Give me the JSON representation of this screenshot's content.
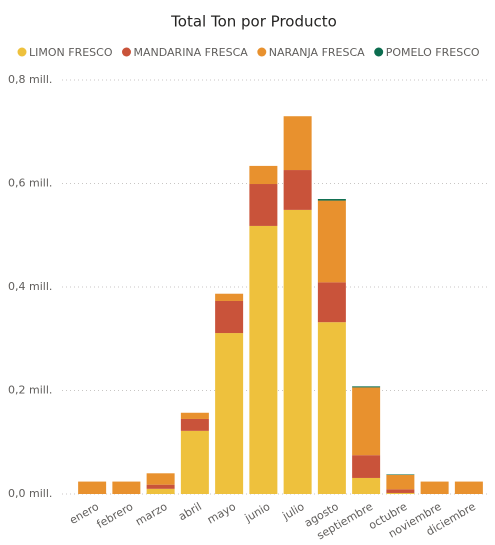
{
  "chart_data": {
    "type": "stacked_bar",
    "title": "Total Ton por Producto",
    "categories": [
      "enero",
      "febrero",
      "marzo",
      "abril",
      "mayo",
      "junio",
      "julio",
      "agosto",
      "septiembre",
      "octubre",
      "noviembre",
      "diciembre"
    ],
    "series": [
      {
        "name": "LIMON FRESCO",
        "color": "#eec13d",
        "values": [
          0,
          0,
          10000,
          122000,
          311000,
          518000,
          549000,
          332000,
          31000,
          2000,
          0,
          0
        ]
      },
      {
        "name": "MANDARINA FRESCA",
        "color": "#c9533a",
        "values": [
          0,
          0,
          8000,
          23000,
          62000,
          81000,
          77000,
          77000,
          44000,
          7000,
          0,
          0
        ]
      },
      {
        "name": "NARANJA FRESCA",
        "color": "#e8912e",
        "values": [
          24000,
          24000,
          22000,
          12000,
          14000,
          35000,
          104000,
          158000,
          131000,
          28000,
          24000,
          24000
        ]
      },
      {
        "name": "POMELO FRESCO",
        "color": "#0c6d4f",
        "values": [
          0,
          0,
          0,
          0,
          0,
          0,
          0,
          3000,
          2000,
          1000,
          0,
          0
        ]
      }
    ],
    "ylim": [
      0,
      800000
    ],
    "yticks": [
      {
        "value": 0,
        "label": "0,0 mill."
      },
      {
        "value": 200000,
        "label": "0,2 mill."
      },
      {
        "value": 400000,
        "label": "0,4 mill."
      },
      {
        "value": 600000,
        "label": "0,6 mill."
      },
      {
        "value": 800000,
        "label": "0,8 mill."
      }
    ],
    "grid": true,
    "legend": "top"
  }
}
